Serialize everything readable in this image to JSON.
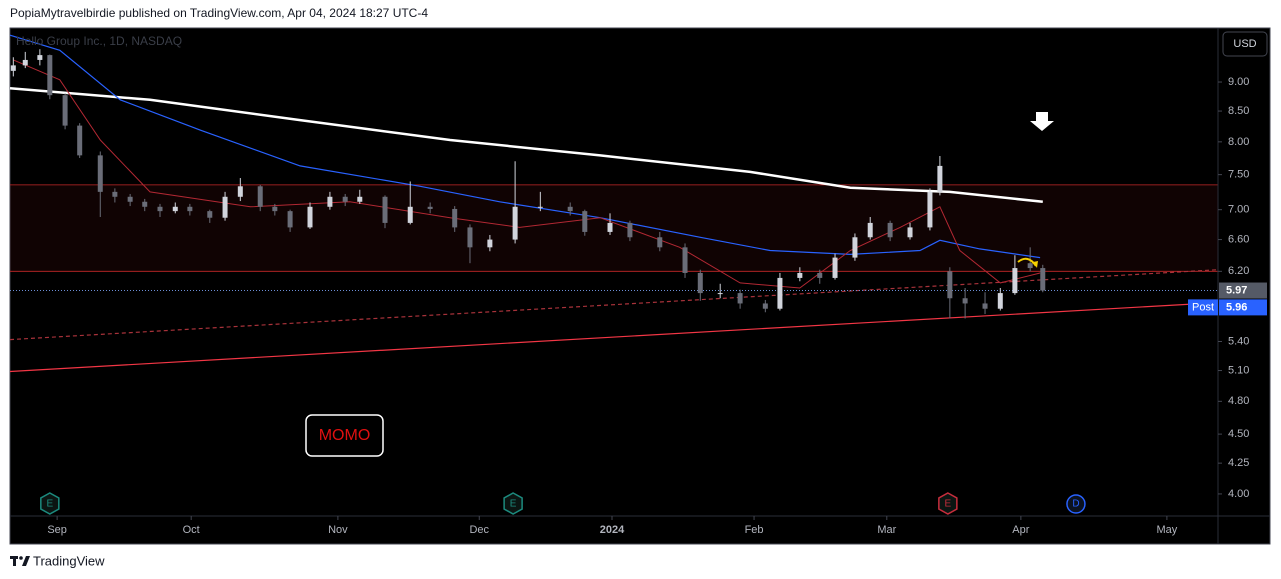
{
  "header": "PopiaMytravelbirdie published on TradingView.com, Apr 04, 2024 18:27 UTC-4",
  "footer": "TradingView",
  "chart_data": {
    "type": "candlestick",
    "title": "Hello Group Inc., 1D, NASDAQ",
    "currency": "USD",
    "annotation": "MOMO",
    "log_scale": true,
    "up_color": "#d1d4dc",
    "down_color": "#6a6d78",
    "x": [
      0.5,
      2.3,
      4.5,
      6.0,
      8.3,
      10.5,
      13.6,
      15.8,
      18.1,
      20.3,
      22.6,
      24.9,
      27.1,
      30.1,
      32.4,
      34.7,
      37.7,
      39.9,
      42.2,
      45.2,
      48.2,
      50.5,
      52.7,
      56.5,
      60.3,
      63.3,
      67.0,
      69.3,
      72.3,
      76.1,
      79.9,
      84.4,
      86.6,
      90.4,
      93.4,
      97.9,
      101.7,
      104.0,
      107.0,
      110.0,
      113.8,
      116.0,
      119.0,
      122.0,
      124.3,
      127.3,
      129.6,
      132.6,
      135.6,
      138.6,
      140.1,
      141.6,
      143.9,
      146.9,
      149.2,
      151.4,
      153.7,
      155.6
    ],
    "open": [
      9.2,
      9.3,
      9.4,
      9.49,
      8.77,
      8.26,
      7.79,
      7.25,
      7.18,
      7.11,
      7.04,
      6.98,
      7.04,
      6.98,
      6.89,
      7.18,
      7.33,
      7.04,
      6.98,
      6.76,
      7.04,
      7.18,
      7.11,
      7.18,
      6.82,
      7.04,
      7.01,
      6.76,
      6.5,
      6.6,
      7.04,
      7.04,
      6.98,
      6.7,
      6.82,
      6.63,
      6.5,
      6.18,
      5.94,
      5.94,
      5.82,
      5.76,
      6.12,
      6.18,
      6.12,
      6.37,
      6.63,
      6.82,
      6.63,
      6.76,
      7.25,
      6.2,
      5.88,
      5.82,
      5.76,
      5.94,
      6.3,
      6.24
    ],
    "high": [
      9.45,
      9.55,
      9.6,
      9.5,
      8.8,
      8.3,
      7.85,
      7.3,
      7.22,
      7.15,
      7.08,
      7.1,
      7.08,
      7.0,
      7.25,
      7.45,
      7.35,
      7.08,
      7.0,
      7.1,
      7.25,
      7.22,
      7.28,
      7.2,
      7.4,
      7.1,
      7.05,
      6.8,
      6.66,
      7.7,
      7.25,
      7.1,
      7.0,
      6.95,
      6.85,
      6.7,
      6.55,
      6.22,
      6.05,
      5.98,
      5.86,
      6.18,
      6.25,
      6.22,
      6.42,
      6.68,
      6.9,
      6.85,
      6.82,
      7.3,
      7.78,
      6.25,
      6.0,
      5.95,
      6.0,
      6.4,
      6.5,
      6.28
    ],
    "low": [
      9.1,
      9.25,
      9.3,
      8.7,
      8.2,
      7.75,
      6.9,
      7.1,
      7.05,
      6.98,
      6.9,
      6.95,
      6.92,
      6.82,
      6.85,
      7.12,
      6.98,
      6.92,
      6.7,
      6.74,
      7.0,
      7.05,
      7.08,
      6.75,
      6.8,
      6.95,
      6.7,
      6.3,
      6.45,
      6.55,
      6.98,
      6.92,
      6.65,
      6.66,
      6.58,
      6.45,
      6.12,
      5.85,
      5.88,
      5.76,
      5.72,
      5.74,
      6.08,
      6.05,
      6.1,
      6.33,
      6.6,
      6.58,
      6.6,
      6.72,
      7.2,
      5.65,
      5.65,
      5.7,
      5.74,
      5.92,
      6.2,
      5.95
    ],
    "close": [
      9.3,
      9.4,
      9.49,
      8.77,
      8.26,
      7.79,
      7.25,
      7.18,
      7.11,
      7.04,
      6.98,
      7.04,
      6.98,
      6.89,
      7.18,
      7.33,
      7.04,
      6.98,
      6.76,
      7.04,
      7.18,
      7.11,
      7.18,
      6.82,
      7.04,
      7.01,
      6.76,
      6.5,
      6.6,
      7.04,
      7.04,
      6.98,
      6.7,
      6.82,
      6.63,
      6.5,
      6.18,
      5.94,
      5.94,
      5.82,
      5.76,
      6.12,
      6.18,
      6.12,
      6.37,
      6.63,
      6.82,
      6.63,
      6.76,
      7.25,
      7.63,
      5.88,
      5.82,
      5.76,
      5.94,
      6.24,
      6.24,
      5.97
    ],
    "overlays": [
      {
        "color": "#ffffff",
        "width": 2.5,
        "x": [
          0,
          21.1,
          43.7,
          66.3,
          88.9,
          111.5,
          126.6,
          141.6,
          155.6
        ],
        "values": [
          8.89,
          8.69,
          8.35,
          8.03,
          7.79,
          7.54,
          7.31,
          7.25,
          7.11
        ]
      },
      {
        "color": "#2962ff",
        "width": 1.2,
        "x": [
          0,
          7.5,
          16.6,
          28.6,
          43.7,
          61.8,
          73.8,
          88.9,
          104.0,
          114.5,
          126.6,
          137.1,
          140.1,
          146.1,
          155.2
        ],
        "values": [
          9.87,
          9.58,
          8.69,
          8.19,
          7.63,
          7.33,
          7.11,
          6.89,
          6.63,
          6.46,
          6.41,
          6.46,
          6.59,
          6.48,
          6.37
        ]
      },
      {
        "color": "#b22833",
        "width": 1,
        "x": [
          0.5,
          7.5,
          13.6,
          21.1,
          36.2,
          51.2,
          66.3,
          76.8,
          88.9,
          100.9,
          110.0,
          119.0,
          126.6,
          134.1,
          140.1,
          143.1,
          149.2,
          155.2
        ],
        "values": [
          9.4,
          9.04,
          8.03,
          7.25,
          7.04,
          7.11,
          6.89,
          6.76,
          6.89,
          6.5,
          6.06,
          6.0,
          6.46,
          6.76,
          7.04,
          6.46,
          6.06,
          6.18
        ]
      }
    ],
    "trendlines": [
      {
        "color": "#f23645",
        "dash": "none",
        "x": [
          0,
          182
        ],
        "values": [
          5.09,
          5.83
        ]
      },
      {
        "color": "#a8323a",
        "dash": "4 3",
        "x": [
          0,
          182
        ],
        "values": [
          5.42,
          6.22
        ]
      }
    ],
    "zone": [
      6.2,
      7.35
    ],
    "zone_color": "#c62828",
    "last_price": 5.97,
    "post_label": "Post",
    "post_price": 5.96,
    "events": [
      {
        "x": 6.0,
        "label": "E",
        "color": "#1c8a7e"
      },
      {
        "x": 75.8,
        "label": "E",
        "color": "#1c8a7e"
      },
      {
        "x": 141.3,
        "label": "E",
        "color": "#c62d3c"
      },
      {
        "x": 160.6,
        "label": "D",
        "color": "#2962ff"
      }
    ],
    "xlim": [
      0,
      182
    ],
    "ylim": [
      3.83,
      10.01
    ],
    "xticks": [
      {
        "value": 7.1,
        "label": "Sep"
      },
      {
        "value": 27.3,
        "label": "Oct"
      },
      {
        "value": 49.4,
        "label": "Nov"
      },
      {
        "value": 70.7,
        "label": "Dec"
      },
      {
        "value": 90.7,
        "label": "2024"
      },
      {
        "value": 112.1,
        "label": "Feb"
      },
      {
        "value": 132.1,
        "label": "Mar"
      },
      {
        "value": 152.3,
        "label": "Apr"
      },
      {
        "value": 174.3,
        "label": "May"
      }
    ],
    "yticks": [
      {
        "value": 9,
        "label": "9.00"
      },
      {
        "value": 8.5,
        "label": "8.50"
      },
      {
        "value": 8,
        "label": "8.00"
      },
      {
        "value": 7.5,
        "label": "7.50"
      },
      {
        "value": 7,
        "label": "7.00"
      },
      {
        "value": 6.6,
        "label": "6.60"
      },
      {
        "value": 6.2,
        "label": "6.20"
      },
      {
        "value": 5.4,
        "label": "5.40"
      },
      {
        "value": 5.1,
        "label": "5.10"
      },
      {
        "value": 4.8,
        "label": "4.80"
      },
      {
        "value": 4.5,
        "label": "4.50"
      },
      4.25,
      {
        "value": 4,
        "label": "4.00"
      }
    ]
  }
}
